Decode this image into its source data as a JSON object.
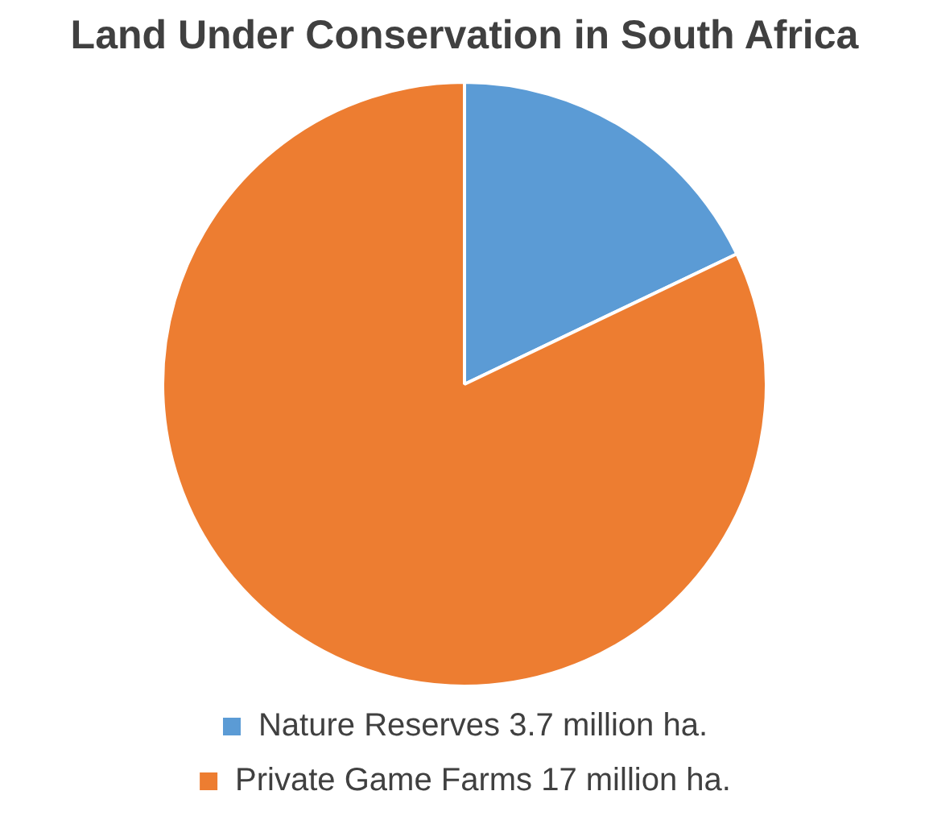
{
  "chart_data": {
    "type": "pie",
    "title": "Land Under Conservation in South Africa",
    "categories": [
      "Nature Reserves 3.7 million ha.",
      "Private Game Farms 17 million ha."
    ],
    "values": [
      17.9,
      82.1
    ],
    "colors": [
      "#5b9bd5",
      "#ed7d31"
    ],
    "legend": "bottom"
  }
}
